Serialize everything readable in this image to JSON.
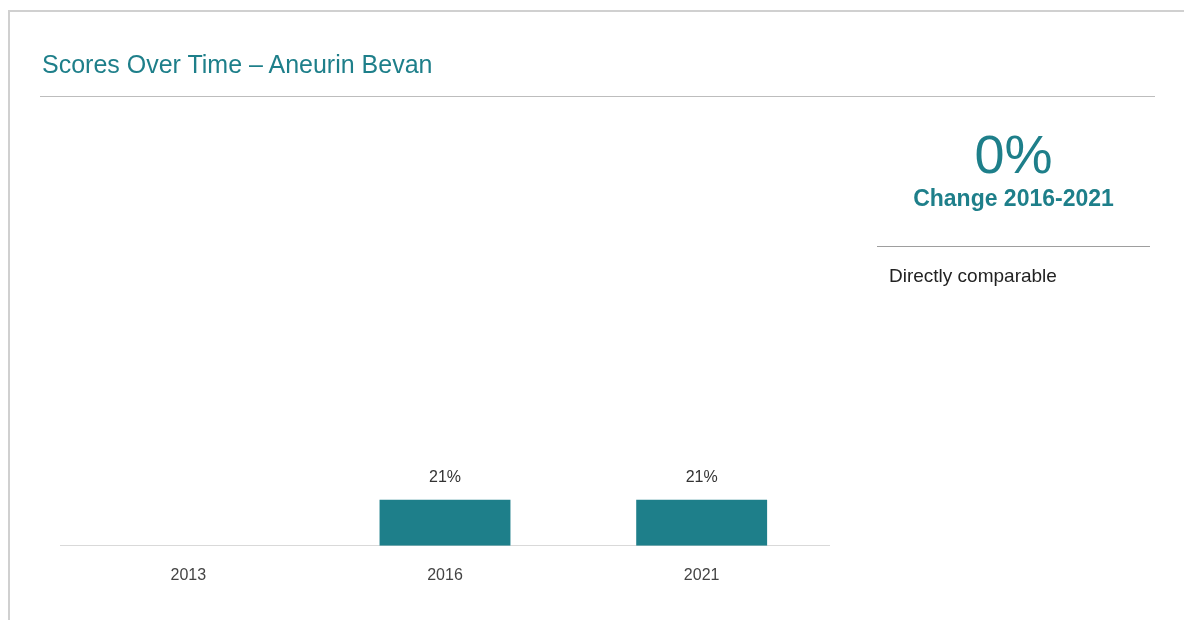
{
  "chart_data": {
    "type": "bar",
    "title": "Scores Over Time – Aneurin Bevan",
    "categories": [
      "2013",
      "2016",
      "2021"
    ],
    "values": [
      null,
      21,
      21
    ],
    "value_labels": [
      null,
      "21%",
      "21%"
    ],
    "color": "#1e7f8a",
    "tick_labels": "x",
    "grid": false,
    "legend": false,
    "annotations": [
      "0%",
      "Change 2016-2021",
      "Directly comparable"
    ]
  }
}
